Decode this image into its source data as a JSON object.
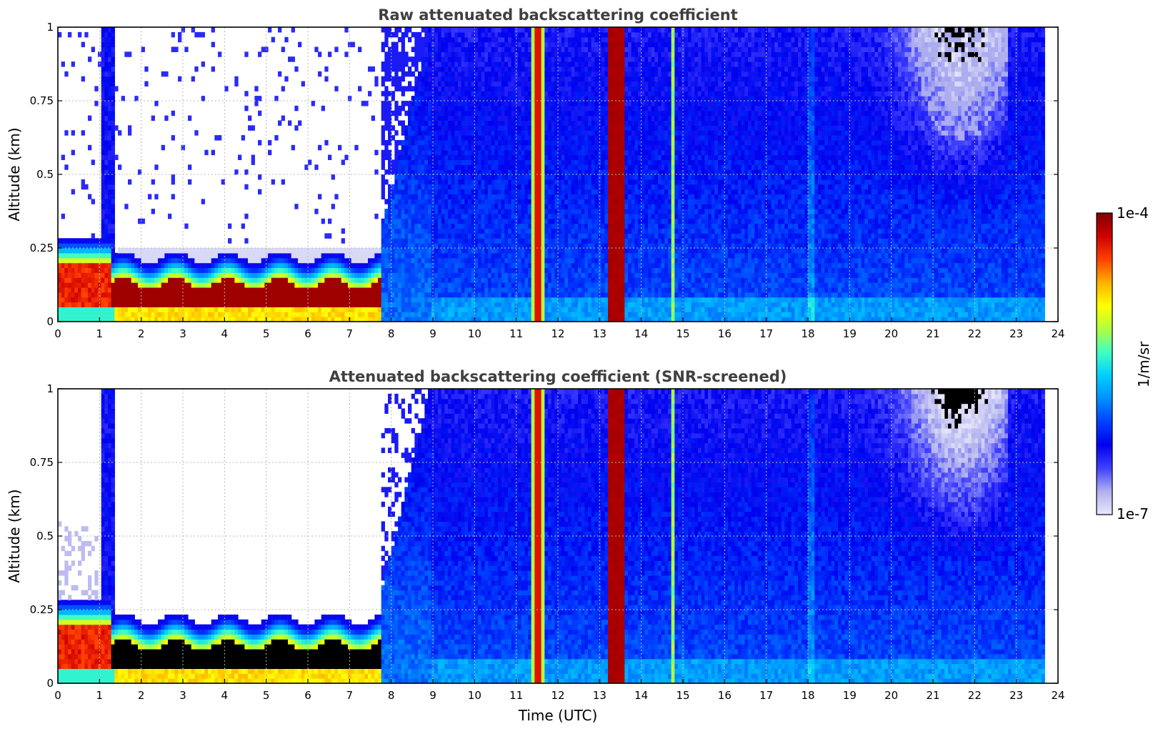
{
  "chart_data": [
    {
      "type": "heatmap",
      "title": "Raw attenuated backscattering coefficient",
      "xlabel": "",
      "ylabel": "Altitude (km)",
      "xlim": [
        0,
        24
      ],
      "ylim": [
        0,
        1
      ],
      "x_ticks": [
        "0",
        "1",
        "2",
        "3",
        "4",
        "5",
        "6",
        "7",
        "8",
        "9",
        "10",
        "11",
        "12",
        "13",
        "14",
        "15",
        "16",
        "17",
        "18",
        "19",
        "20",
        "21",
        "22",
        "23",
        "24"
      ],
      "y_ticks": [
        "0",
        "0.25",
        "0.5",
        "0.75",
        "1"
      ],
      "grid": true,
      "data_end_time": 23.65,
      "color_scale": "log",
      "features": [
        {
          "name": "boundary layer aerosol",
          "time_range": [
            0,
            7.7
          ],
          "altitude_range": [
            0.05,
            0.2
          ],
          "level": "high"
        },
        {
          "name": "low noise background",
          "time_range": [
            1.4,
            7.7
          ],
          "altitude_range": [
            0.25,
            1.0
          ],
          "level": "sparse"
        },
        {
          "name": "cloud column",
          "time_range": [
            11.3,
            11.65
          ],
          "altitude_range": [
            0,
            1
          ],
          "level": "high"
        },
        {
          "name": "cloud column",
          "time_range": [
            13.2,
            13.6
          ],
          "altitude_range": [
            0,
            1
          ],
          "level": "very high"
        },
        {
          "name": "cloud column",
          "time_range": [
            14.65,
            14.8
          ],
          "altitude_range": [
            0,
            1
          ],
          "level": "medium"
        },
        {
          "name": "clean air",
          "time_range": [
            19.2,
            22.8
          ],
          "altitude_range": [
            0.45,
            1.0
          ],
          "level": "low"
        }
      ]
    },
    {
      "type": "heatmap",
      "title": "Attenuated backscattering coefficient (SNR-screened)",
      "xlabel": "Time (UTC)",
      "ylabel": "Altitude (km)",
      "xlim": [
        0,
        24
      ],
      "ylim": [
        0,
        1
      ],
      "x_ticks": [
        "0",
        "1",
        "2",
        "3",
        "4",
        "5",
        "6",
        "7",
        "8",
        "9",
        "10",
        "11",
        "12",
        "13",
        "14",
        "15",
        "16",
        "17",
        "18",
        "19",
        "20",
        "21",
        "22",
        "23",
        "24"
      ],
      "y_ticks": [
        "0",
        "0.25",
        "0.5",
        "0.75",
        "1"
      ],
      "grid": true,
      "data_end_time": 23.65,
      "color_scale": "log",
      "features": [
        {
          "name": "saturated boundary layer",
          "time_range": [
            0,
            7.7
          ],
          "altitude_range": [
            0.05,
            0.2
          ],
          "level": "saturated"
        },
        {
          "name": "screened region",
          "time_range": [
            1.4,
            8.3
          ],
          "altitude_range": [
            0.25,
            1.0
          ],
          "level": "masked"
        },
        {
          "name": "cloud column",
          "time_range": [
            11.3,
            11.65
          ],
          "altitude_range": [
            0,
            1
          ],
          "level": "high"
        },
        {
          "name": "cloud column",
          "time_range": [
            13.2,
            13.6
          ],
          "altitude_range": [
            0,
            1
          ],
          "level": "very high"
        },
        {
          "name": "cloud column",
          "time_range": [
            14.65,
            14.8
          ],
          "altitude_range": [
            0,
            1
          ],
          "level": "medium"
        },
        {
          "name": "clean air",
          "time_range": [
            19.2,
            22.8
          ],
          "altitude_range": [
            0.45,
            1.0
          ],
          "level": "low"
        }
      ]
    }
  ],
  "colorbar": {
    "max_label": "1e-4",
    "min_label": "1e-7",
    "unit_label": "1/m/sr",
    "scale": "log",
    "range": [
      1e-07,
      0.0001
    ],
    "colors": [
      "#e8e8fa",
      "#b0b0f0",
      "#4040ff",
      "#0000ee",
      "#0040ff",
      "#0090ff",
      "#00d0ff",
      "#40ffc0",
      "#b0ff40",
      "#ffff00",
      "#ffb000",
      "#ff4000",
      "#d00000",
      "#800000"
    ]
  }
}
